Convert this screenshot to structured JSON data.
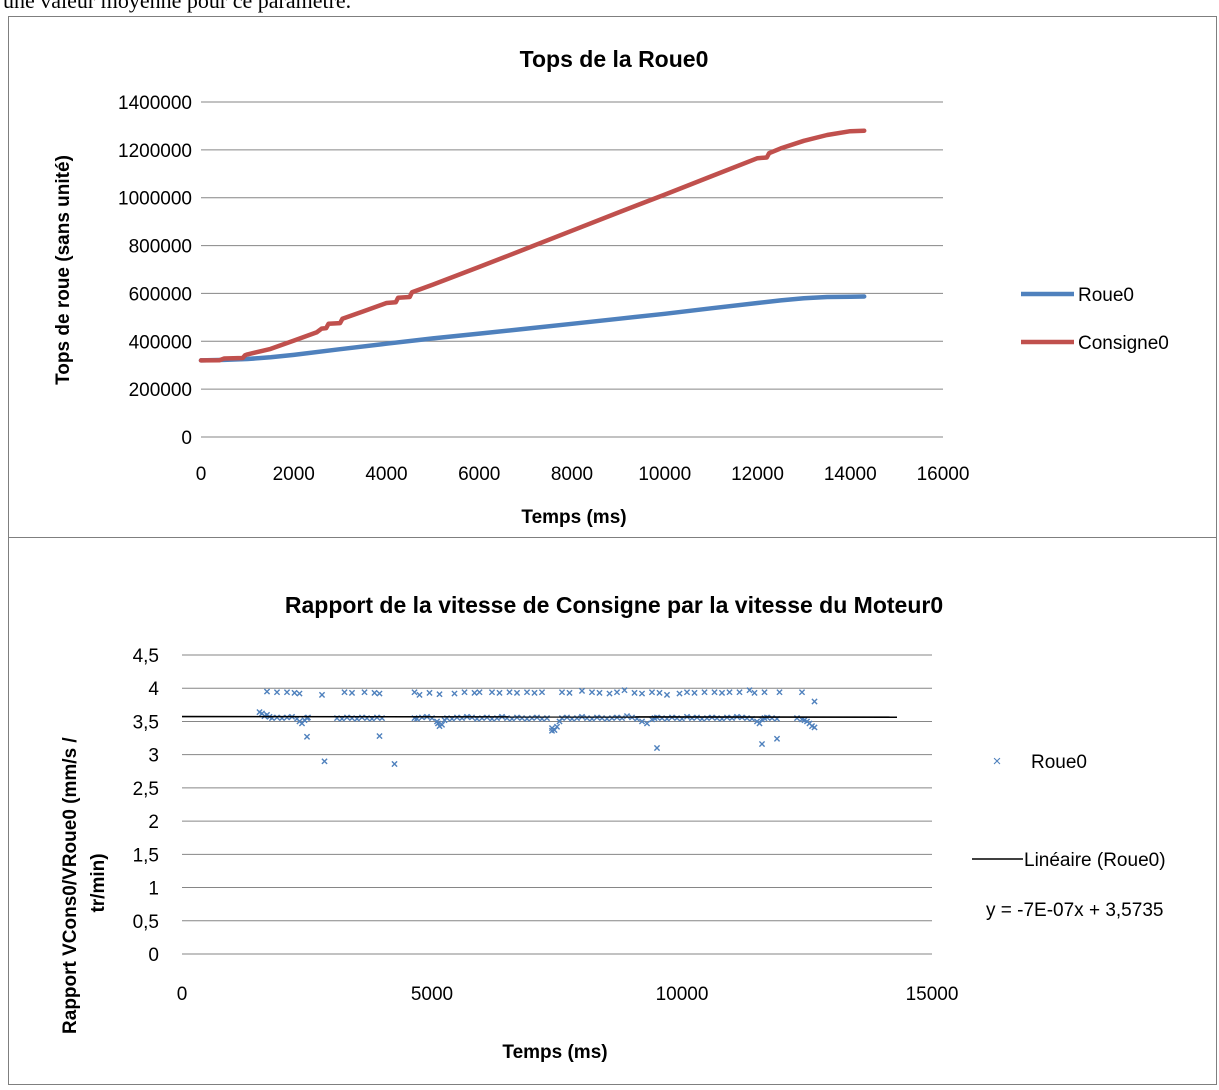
{
  "page": {
    "top_text": "une valeur moyenne pour ce paramètre."
  },
  "chart_data": [
    {
      "type": "line",
      "title": "Tops de la Roue0",
      "xlabel": "Temps (ms)",
      "ylabel": "Tops de roue (sans unité)",
      "xlim": [
        0,
        16000
      ],
      "ylim": [
        0,
        1400000
      ],
      "xticks": [
        0,
        2000,
        4000,
        6000,
        8000,
        10000,
        12000,
        14000,
        16000
      ],
      "yticks": [
        0,
        200000,
        400000,
        600000,
        800000,
        1000000,
        1200000,
        1400000
      ],
      "xtick_labels": [
        "0",
        "2000",
        "4000",
        "6000",
        "8000",
        "10000",
        "12000",
        "14000",
        "16000"
      ],
      "ytick_labels": [
        "0",
        "200000",
        "400000",
        "600000",
        "800000",
        "1000000",
        "1200000",
        "1400000"
      ],
      "grid": "horizontal",
      "legend": "right",
      "series": [
        {
          "name": "Roue0",
          "color": "#4f81bd",
          "x": [
            0,
            500,
            1000,
            1500,
            2000,
            3000,
            4000,
            5000,
            6000,
            7000,
            8000,
            9000,
            10000,
            11000,
            12000,
            12500,
            13000,
            13500,
            14000,
            14300
          ],
          "y": [
            320000,
            322000,
            326000,
            333000,
            343000,
            367000,
            390000,
            412000,
            432000,
            452000,
            473000,
            494000,
            515000,
            538000,
            560000,
            571000,
            580000,
            585000,
            586000,
            587000
          ]
        },
        {
          "name": "Consigne0",
          "color": "#c0504d",
          "x": [
            0,
            400,
            500,
            900,
            950,
            1000,
            1500,
            2000,
            2500,
            2600,
            2700,
            2750,
            3000,
            3050,
            3500,
            4000,
            4200,
            4250,
            4500,
            4550,
            5000,
            6000,
            7000,
            8000,
            9000,
            10000,
            11000,
            12000,
            12200,
            12250,
            12500,
            13000,
            13500,
            14000,
            14300
          ],
          "y": [
            320000,
            321000,
            328000,
            330000,
            342000,
            345000,
            368000,
            403000,
            438000,
            453000,
            455000,
            473000,
            476000,
            494000,
            525000,
            560000,
            563000,
            582000,
            585000,
            605000,
            637000,
            711000,
            786000,
            862000,
            938000,
            1013000,
            1089000,
            1165000,
            1168000,
            1186000,
            1206000,
            1238000,
            1262000,
            1278000,
            1280000
          ]
        }
      ]
    },
    {
      "type": "scatter",
      "title": "Rapport de la vitesse de Consigne par la vitesse du Moteur0",
      "xlabel": "Temps (ms)",
      "ylabel_lines": [
        "Rapport VCons0/VRoue0 (mm/s /",
        "tr/min)"
      ],
      "xlim": [
        0,
        15000
      ],
      "ylim": [
        0,
        4.5
      ],
      "xticks": [
        0,
        5000,
        10000,
        15000
      ],
      "yticks": [
        0,
        0.5,
        1,
        1.5,
        2,
        2.5,
        3,
        3.5,
        4,
        4.5
      ],
      "xtick_labels": [
        "0",
        "5000",
        "10000",
        "15000"
      ],
      "ytick_labels": [
        "0",
        "0,5",
        "1",
        "1,5",
        "2",
        "2,5",
        "3",
        "3,5",
        "4",
        "4,5"
      ],
      "grid": "horizontal",
      "legend": "right",
      "series": [
        {
          "name": "Roue0",
          "color": "#4f81bd",
          "marker": "x",
          "x": [
            1550,
            1600,
            1650,
            1700,
            1750,
            1800,
            1900,
            2000,
            2100,
            2200,
            2300,
            2350,
            2400,
            2450,
            2500,
            2520,
            3100,
            3200,
            3300,
            3400,
            3500,
            3600,
            3700,
            3800,
            3900,
            4000,
            4650,
            4700,
            4800,
            4900,
            5000,
            5100,
            5120,
            5150,
            5200,
            5250,
            5300,
            5400,
            5500,
            5600,
            5700,
            5800,
            5900,
            6000,
            6100,
            6200,
            6300,
            6400,
            6500,
            6600,
            6700,
            6800,
            6900,
            7000,
            7100,
            7200,
            7300,
            7400,
            7450,
            7500,
            7550,
            7600,
            7700,
            7800,
            7900,
            8000,
            8100,
            8200,
            8300,
            8400,
            8500,
            8600,
            8700,
            8800,
            8900,
            9000,
            9100,
            9200,
            9300,
            9400,
            9450,
            9500,
            9600,
            9700,
            9800,
            9900,
            10000,
            10100,
            10200,
            10300,
            10400,
            10500,
            10600,
            10700,
            10800,
            10900,
            11000,
            11100,
            11200,
            11300,
            11400,
            11500,
            11550,
            11600,
            11650,
            11700,
            11800,
            11900,
            12300,
            12400,
            12450,
            12500,
            12550,
            12600,
            12650,
            1700,
            1900,
            2100,
            2250,
            2350,
            2800,
            3250,
            3400,
            3650,
            3850,
            3950,
            4650,
            4750,
            4950,
            5150,
            5450,
            5650,
            5850,
            5950,
            6200,
            6350,
            6550,
            6700,
            6900,
            7050,
            7200,
            7600,
            7750,
            8000,
            8200,
            8350,
            8550,
            8700,
            8850,
            9050,
            9200,
            9400,
            9550,
            9700,
            9950,
            10100,
            10250,
            10450,
            10650,
            10800,
            10950,
            11150,
            11350,
            11450,
            11650,
            11950,
            12400,
            2500,
            2850,
            3950,
            4250,
            7400,
            9500,
            11600,
            11900,
            12650
          ],
          "y": [
            3.64,
            3.62,
            3.58,
            3.6,
            3.57,
            3.55,
            3.56,
            3.55,
            3.56,
            3.57,
            3.54,
            3.5,
            3.47,
            3.52,
            3.55,
            3.56,
            3.55,
            3.54,
            3.56,
            3.55,
            3.54,
            3.56,
            3.55,
            3.54,
            3.56,
            3.55,
            3.55,
            3.54,
            3.56,
            3.57,
            3.55,
            3.5,
            3.47,
            3.43,
            3.45,
            3.52,
            3.55,
            3.54,
            3.56,
            3.55,
            3.57,
            3.56,
            3.54,
            3.55,
            3.56,
            3.54,
            3.55,
            3.57,
            3.55,
            3.54,
            3.56,
            3.55,
            3.54,
            3.55,
            3.56,
            3.54,
            3.55,
            3.4,
            3.37,
            3.42,
            3.5,
            3.55,
            3.56,
            3.54,
            3.55,
            3.57,
            3.55,
            3.54,
            3.56,
            3.55,
            3.54,
            3.55,
            3.56,
            3.55,
            3.58,
            3.56,
            3.54,
            3.5,
            3.47,
            3.53,
            3.55,
            3.56,
            3.55,
            3.54,
            3.56,
            3.55,
            3.54,
            3.57,
            3.55,
            3.56,
            3.54,
            3.55,
            3.56,
            3.55,
            3.54,
            3.56,
            3.55,
            3.57,
            3.56,
            3.55,
            3.54,
            3.5,
            3.47,
            3.53,
            3.55,
            3.56,
            3.55,
            3.54,
            3.55,
            3.53,
            3.52,
            3.5,
            3.47,
            3.43,
            3.41,
            3.95,
            3.94,
            3.94,
            3.93,
            3.92,
            3.9,
            3.94,
            3.93,
            3.94,
            3.93,
            3.92,
            3.94,
            3.9,
            3.93,
            3.91,
            3.92,
            3.94,
            3.93,
            3.94,
            3.94,
            3.93,
            3.94,
            3.93,
            3.94,
            3.93,
            3.94,
            3.94,
            3.93,
            3.96,
            3.94,
            3.93,
            3.92,
            3.94,
            3.97,
            3.93,
            3.92,
            3.94,
            3.93,
            3.9,
            3.92,
            3.94,
            3.93,
            3.94,
            3.94,
            3.93,
            3.94,
            3.94,
            3.97,
            3.93,
            3.94,
            3.94,
            3.94,
            3.27,
            2.9,
            3.28,
            2.86,
            3.36,
            3.1,
            3.16,
            3.24,
            3.8
          ]
        }
      ],
      "trendline": {
        "name": "Linéaire (Roue0)",
        "color": "#000000",
        "equation": "y = -7E-07x + 3,5735",
        "slope": -7e-07,
        "intercept": 3.5735,
        "x_range": [
          0,
          14300
        ]
      }
    }
  ]
}
